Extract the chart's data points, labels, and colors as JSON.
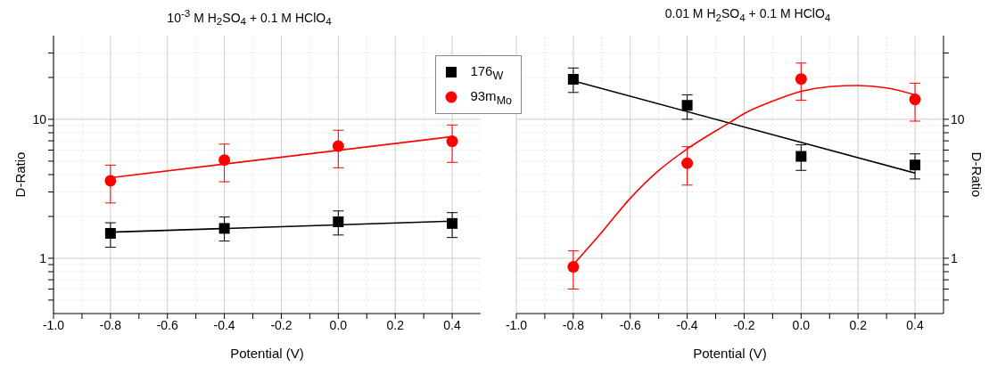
{
  "chart_data": [
    {
      "type": "scatter",
      "title": "10$^{-3}$ M H$_{2}$SO$_{4}$ + 0.1  M HClO$_{4}$",
      "xlabel": "Potential (V)",
      "ylabel": "D-Ratio",
      "log": "y",
      "grid": true,
      "legend": "top right",
      "xlim": [
        -1.0,
        0.5
      ],
      "xticks": [
        {
          "value": -1,
          "label": "-1.0"
        },
        {
          "value": -0.9,
          "label": null
        },
        -0.8,
        {
          "value": -0.7,
          "label": null
        },
        -0.6,
        {
          "value": -0.5,
          "label": null
        },
        -0.4,
        {
          "value": -0.3,
          "label": null
        },
        -0.2,
        {
          "value": -0.1,
          "label": null
        },
        {
          "value": 0,
          "label": "0.0"
        },
        {
          "value": 0.1,
          "label": null
        },
        0.2,
        {
          "value": 0.3,
          "label": null
        },
        0.4
      ],
      "ylim": [
        0.4,
        40
      ],
      "yticks": [
        {
          "value": 0.5,
          "label": null
        },
        {
          "value": 0.6,
          "label": null
        },
        {
          "value": 0.7,
          "label": null
        },
        {
          "value": 0.8,
          "label": null
        },
        {
          "value": 0.9,
          "label": null
        },
        1,
        {
          "value": 2,
          "label": null
        },
        {
          "value": 3,
          "label": null
        },
        {
          "value": 4,
          "label": null
        },
        {
          "value": 5,
          "label": null
        },
        {
          "value": 6,
          "label": null
        },
        {
          "value": 7,
          "label": null
        },
        {
          "value": 8,
          "label": null
        },
        {
          "value": 9,
          "label": null
        },
        10,
        {
          "value": 20,
          "label": null
        },
        {
          "value": 30,
          "label": null
        }
      ],
      "x": [
        -0.8,
        -0.4,
        0,
        0.4
      ],
      "series": [
        {
          "name": "176$_{W}$",
          "color": "#000000",
          "marker": "square",
          "values": [
            1.51,
            1.64,
            1.83,
            1.78
          ],
          "errors": [
            [
              1.2,
              1.8
            ],
            [
              1.33,
              1.98
            ],
            [
              1.47,
              2.19
            ],
            [
              1.41,
              2.13
            ]
          ]
        },
        {
          "name": "93m$_{Mo}$",
          "color": "#ff0000",
          "marker": "circle",
          "values": [
            3.61,
            5.09,
            6.41,
            6.95
          ],
          "errors": [
            [
              2.5,
              4.68
            ],
            [
              3.55,
              6.63
            ],
            [
              4.48,
              8.34
            ],
            [
              4.9,
              9.1
            ]
          ]
        },
        {
          "type": "line",
          "color": "#000000",
          "marker": "none",
          "x": [
            -0.8,
            0.4
          ],
          "values": [
            1.54,
            1.85
          ]
        },
        {
          "type": "line",
          "color": "#ff0000",
          "marker": "none",
          "x": [
            -0.8,
            0.4
          ],
          "values": [
            3.8,
            7.5
          ]
        }
      ]
    },
    {
      "type": "scatter",
      "title": "0.01 M H$_{2}$SO$_{4}$ + 0.1  M HClO$_{4}$",
      "xlabel": "Potential (V)",
      "y2label": "D-Ratio",
      "log": "y2",
      "grid": true,
      "xlim": [
        -1.0,
        0.5
      ],
      "xticks": [
        {
          "value": -1,
          "label": "-1.0"
        },
        {
          "value": -0.9,
          "label": null
        },
        -0.8,
        {
          "value": -0.7,
          "label": null
        },
        -0.6,
        {
          "value": -0.5,
          "label": null
        },
        -0.4,
        {
          "value": -0.3,
          "label": null
        },
        -0.2,
        {
          "value": -0.1,
          "label": null
        },
        {
          "value": 0,
          "label": "0.0"
        },
        {
          "value": 0.1,
          "label": null
        },
        0.2,
        {
          "value": 0.3,
          "label": null
        },
        0.4
      ],
      "y2lim": [
        0.4,
        40
      ],
      "y2ticks": [
        {
          "value": 0.5,
          "label": null
        },
        {
          "value": 0.6,
          "label": null
        },
        {
          "value": 0.7,
          "label": null
        },
        {
          "value": 0.8,
          "label": null
        },
        {
          "value": 0.9,
          "label": null
        },
        1,
        {
          "value": 2,
          "label": null
        },
        {
          "value": 3,
          "label": null
        },
        {
          "value": 4,
          "label": null
        },
        {
          "value": 5,
          "label": null
        },
        {
          "value": 6,
          "label": null
        },
        {
          "value": 7,
          "label": null
        },
        {
          "value": 8,
          "label": null
        },
        {
          "value": 9,
          "label": null
        },
        10,
        {
          "value": 20,
          "label": null
        },
        {
          "value": 30,
          "label": null
        }
      ],
      "x": [
        -0.8,
        -0.4,
        0,
        0.4
      ],
      "series": [
        {
          "axis": "y2",
          "color": "#000000",
          "marker": "square",
          "values": [
            19.4,
            12.6,
            5.41,
            4.69
          ],
          "errors": [
            [
              15.6,
              23.4
            ],
            [
              10.0,
              15.0
            ],
            [
              4.29,
              6.55
            ],
            [
              3.72,
              5.64
            ]
          ]
        },
        {
          "axis": "y2",
          "color": "#ff0000",
          "marker": "circle",
          "values": [
            0.867,
            4.83,
            19.5,
            13.9
          ],
          "errors": [
            [
              0.6,
              1.13
            ],
            [
              3.36,
              6.35
            ],
            [
              13.7,
              25.4
            ],
            [
              9.7,
              18.2
            ]
          ]
        },
        {
          "axis": "y2",
          "type": "line",
          "color": "#000000",
          "marker": "none",
          "x": [
            -0.8,
            0.4
          ],
          "values": [
            18.9,
            4.1
          ]
        },
        {
          "axis": "y2",
          "type": "line",
          "color": "#ff0000",
          "marker": "none",
          "x": [
            -0.8,
            -0.7,
            -0.6,
            -0.5,
            -0.4,
            -0.25,
            -0.2,
            -0.1,
            0,
            0.1,
            0.2,
            0.3,
            0.4
          ],
          "values": [
            0.9,
            1.54,
            2.7,
            4.28,
            6.12,
            9.5,
            11.0,
            13.5,
            15.9,
            17.2,
            17.5,
            16.8,
            15.0
          ]
        }
      ]
    }
  ]
}
